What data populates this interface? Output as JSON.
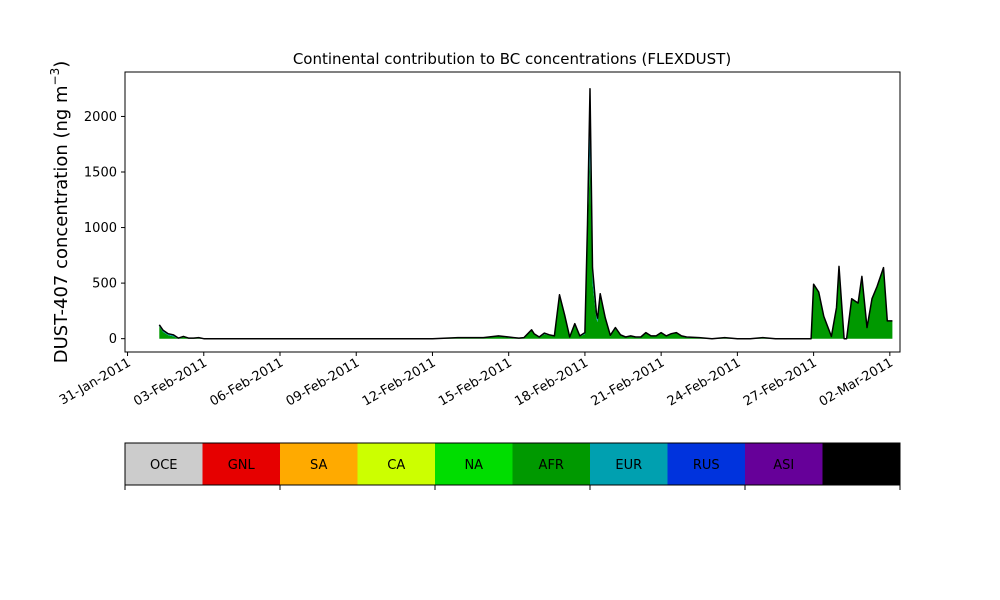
{
  "chart_data": {
    "type": "area",
    "title": "Continental contribution to BC concentrations (FLEXDUST)",
    "ylabel": "DUST-407 concentration (ng m",
    "ylabel_sup": "−3",
    "ylabel_close": ")",
    "xlabel": "",
    "ylim": [
      -120,
      2400
    ],
    "xlim_days": [
      -0.1,
      30.4
    ],
    "y_ticks": [
      "0",
      "500",
      "1000",
      "1500",
      "2000"
    ],
    "y_tick_values": [
      0,
      500,
      1000,
      1500,
      2000
    ],
    "x_ticks": [
      "31-Jan-2011",
      "03-Feb-2011",
      "06-Feb-2011",
      "09-Feb-2011",
      "12-Feb-2011",
      "15-Feb-2011",
      "18-Feb-2011",
      "21-Feb-2011",
      "24-Feb-2011",
      "27-Feb-2011",
      "02-Mar-2011"
    ],
    "x_tick_days": [
      0,
      3,
      6,
      9,
      12,
      15,
      18,
      21,
      24,
      27,
      30
    ],
    "x": [
      1.25,
      1.4,
      1.6,
      1.8,
      2.0,
      2.2,
      2.4,
      2.6,
      2.8,
      3.0,
      3.2,
      3.5,
      4,
      5,
      6,
      8,
      10,
      12,
      13,
      14,
      14.6,
      15.0,
      15.2,
      15.4,
      15.6,
      15.9,
      16.0,
      16.2,
      16.4,
      16.6,
      16.8,
      17.0,
      17.2,
      17.4,
      17.6,
      17.8,
      18.0,
      18.1,
      18.2,
      18.3,
      18.45,
      18.5,
      18.6,
      18.8,
      19.0,
      19.2,
      19.4,
      19.6,
      19.8,
      20.0,
      20.2,
      20.4,
      20.6,
      20.8,
      21.0,
      21.2,
      21.4,
      21.6,
      21.8,
      22.0,
      22.5,
      23,
      23.5,
      24,
      24.5,
      25,
      25.5,
      26,
      26.5,
      26.7,
      26.9,
      27.0,
      27.2,
      27.4,
      27.7,
      27.9,
      28.0,
      28.2,
      28.3,
      28.5,
      28.75,
      28.9,
      29.1,
      29.3,
      29.5,
      29.75,
      29.9,
      30.1
    ],
    "series": [
      {
        "name": "AFR",
        "color": "#009900",
        "values": [
          110,
          60,
          30,
          20,
          0,
          15,
          5,
          5,
          10,
          0,
          0,
          0,
          0,
          0,
          0,
          0,
          0,
          0,
          10,
          10,
          20,
          10,
          5,
          5,
          10,
          70,
          40,
          10,
          40,
          30,
          20,
          380,
          200,
          10,
          120,
          20,
          40,
          900,
          1650,
          500,
          180,
          150,
          380,
          180,
          20,
          90,
          30,
          10,
          20,
          10,
          10,
          50,
          20,
          20,
          50,
          20,
          40,
          50,
          20,
          10,
          10,
          0,
          10,
          0,
          0,
          10,
          0,
          0,
          0,
          0,
          0,
          490,
          420,
          200,
          20,
          280,
          650,
          0,
          0,
          360,
          320,
          560,
          100,
          360,
          470,
          640,
          160,
          160
        ]
      },
      {
        "name": "EUR",
        "color": "#00a0b0",
        "values": [
          10,
          10,
          10,
          10,
          5,
          5,
          0,
          0,
          0,
          0,
          0,
          0,
          0,
          0,
          0,
          0,
          0,
          0,
          0,
          0,
          5,
          5,
          5,
          0,
          0,
          10,
          5,
          5,
          10,
          5,
          5,
          10,
          10,
          5,
          10,
          5,
          10,
          100,
          300,
          80,
          40,
          30,
          20,
          10,
          10,
          10,
          5,
          5,
          5,
          5,
          5,
          5,
          5,
          5,
          5,
          5,
          5,
          5,
          5,
          5,
          0,
          0,
          0,
          0,
          0,
          0,
          0,
          0,
          0,
          0,
          0,
          0,
          0,
          0,
          0,
          0,
          0,
          0,
          0,
          0,
          0,
          0,
          0,
          0,
          0,
          0,
          0,
          0
        ]
      },
      {
        "name": "RUS",
        "color": "#0033dd",
        "values": [
          5,
          5,
          5,
          5,
          0,
          0,
          0,
          0,
          0,
          0,
          0,
          0,
          0,
          0,
          0,
          0,
          0,
          0,
          0,
          0,
          0,
          0,
          0,
          0,
          0,
          0,
          0,
          0,
          0,
          0,
          0,
          5,
          5,
          0,
          5,
          0,
          5,
          30,
          180,
          40,
          10,
          5,
          5,
          0,
          0,
          0,
          0,
          0,
          0,
          0,
          0,
          0,
          0,
          0,
          0,
          0,
          0,
          0,
          0,
          0,
          0,
          0,
          0,
          0,
          0,
          0,
          0,
          0,
          0,
          0,
          0,
          0,
          0,
          0,
          0,
          0,
          0,
          0,
          0,
          0,
          0,
          0,
          0,
          0,
          0,
          0,
          0,
          0
        ]
      },
      {
        "name": "ASI",
        "color": "#660099",
        "values": [
          0,
          0,
          0,
          0,
          0,
          0,
          0,
          0,
          0,
          0,
          0,
          0,
          0,
          0,
          0,
          0,
          0,
          0,
          0,
          0,
          0,
          0,
          0,
          0,
          0,
          0,
          0,
          0,
          0,
          0,
          0,
          0,
          0,
          0,
          0,
          0,
          0,
          0,
          120,
          20,
          0,
          0,
          0,
          0,
          0,
          0,
          0,
          0,
          0,
          0,
          0,
          0,
          0,
          0,
          0,
          0,
          0,
          0,
          0,
          0,
          0,
          0,
          0,
          0,
          0,
          0,
          0,
          0,
          0,
          0,
          0,
          0,
          0,
          0,
          0,
          0,
          0,
          0,
          0,
          0,
          0,
          0,
          0,
          0,
          0,
          0,
          0,
          0
        ]
      }
    ],
    "legend": [
      {
        "name": "OCE",
        "color": "#cccccc"
      },
      {
        "name": "GNL",
        "color": "#e60000"
      },
      {
        "name": "SA",
        "color": "#ffaa00"
      },
      {
        "name": "CA",
        "color": "#ccff00"
      },
      {
        "name": "NA",
        "color": "#00dd00"
      },
      {
        "name": "AFR",
        "color": "#009900"
      },
      {
        "name": "EUR",
        "color": "#00a0b0"
      },
      {
        "name": "RUS",
        "color": "#0033dd"
      },
      {
        "name": "ASI",
        "color": "#660099"
      },
      {
        "name": "AUS",
        "color": "#000000"
      }
    ],
    "legend_placement": "bottom",
    "grid": false
  }
}
